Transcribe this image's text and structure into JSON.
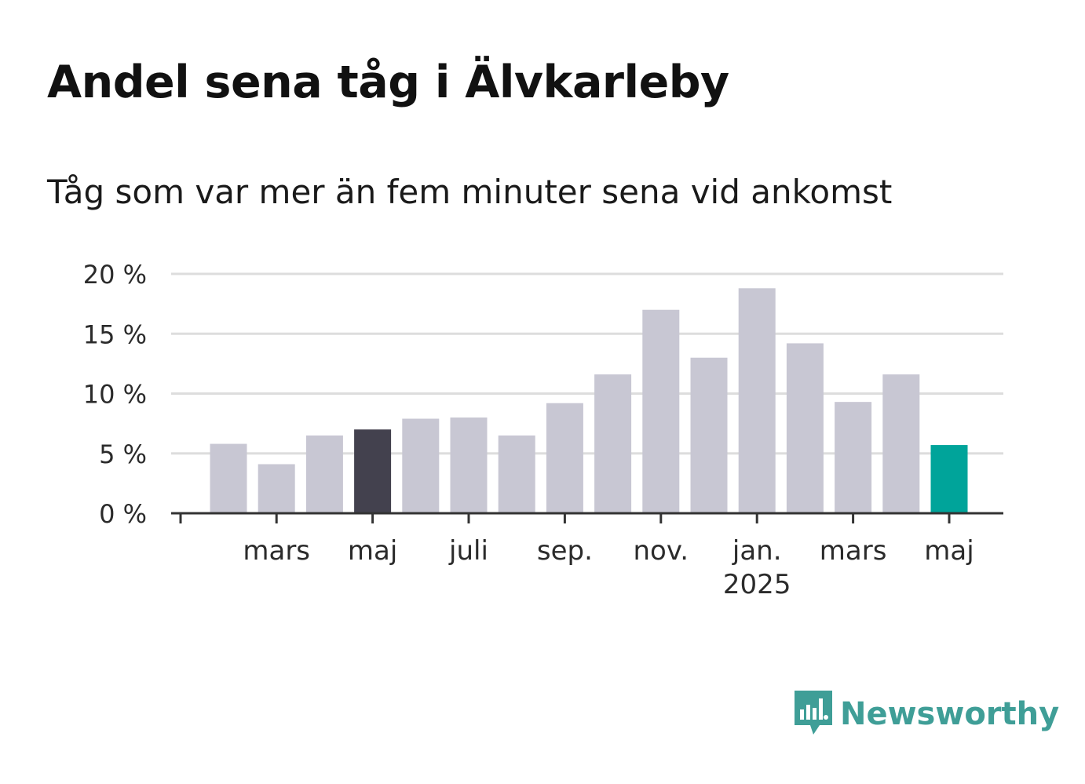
{
  "title": "Andel sena tåg i Älvkarleby",
  "subtitle": "Tåg som var mer än fem minuter sena vid ankomst",
  "logo": {
    "text": "Newsworthy",
    "icon": "newsworthy-bar-chart-icon",
    "color": "#3f9e97"
  },
  "colors": {
    "default": "#c8c7d3",
    "highlight": "#43414e",
    "latest": "#00a49a",
    "grid": "#dddddd",
    "axis": "#333333"
  },
  "chart_data": {
    "type": "bar",
    "title": "Andel sena tåg i Älvkarleby",
    "subtitle": "Tåg som var mer än fem minuter sena vid ankomst",
    "xlabel": "",
    "ylabel": "",
    "ylim": [
      0,
      20
    ],
    "yticks": [
      "0 %",
      "5 %",
      "10 %",
      "15 %",
      "20 %"
    ],
    "ytick_values": [
      0,
      5,
      10,
      15,
      20
    ],
    "grid": true,
    "categories": [
      "2024-02",
      "2024-03",
      "2024-04",
      "2024-05",
      "2024-06",
      "2024-07",
      "2024-08",
      "2024-09",
      "2024-10",
      "2024-11",
      "2024-12",
      "2025-01",
      "2025-02",
      "2025-03",
      "2025-04",
      "2025-05"
    ],
    "values": [
      5.8,
      4.1,
      6.5,
      7.0,
      7.9,
      8.0,
      6.5,
      9.2,
      11.6,
      17.0,
      13.0,
      18.8,
      14.2,
      9.3,
      11.6,
      5.7
    ],
    "bar_colors": [
      "default",
      "default",
      "default",
      "highlight",
      "default",
      "default",
      "default",
      "default",
      "default",
      "default",
      "default",
      "default",
      "default",
      "default",
      "default",
      "latest"
    ],
    "xtick_labels": [
      {
        "category": "2024-03",
        "label": "mars",
        "sublabel": ""
      },
      {
        "category": "2024-05",
        "label": "maj",
        "sublabel": ""
      },
      {
        "category": "2024-07",
        "label": "juli",
        "sublabel": ""
      },
      {
        "category": "2024-09",
        "label": "sep.",
        "sublabel": ""
      },
      {
        "category": "2024-11",
        "label": "nov.",
        "sublabel": ""
      },
      {
        "category": "2025-01",
        "label": "jan.",
        "sublabel": "2025"
      },
      {
        "category": "2025-03",
        "label": "mars",
        "sublabel": ""
      },
      {
        "category": "2025-05",
        "label": "maj",
        "sublabel": ""
      }
    ]
  }
}
